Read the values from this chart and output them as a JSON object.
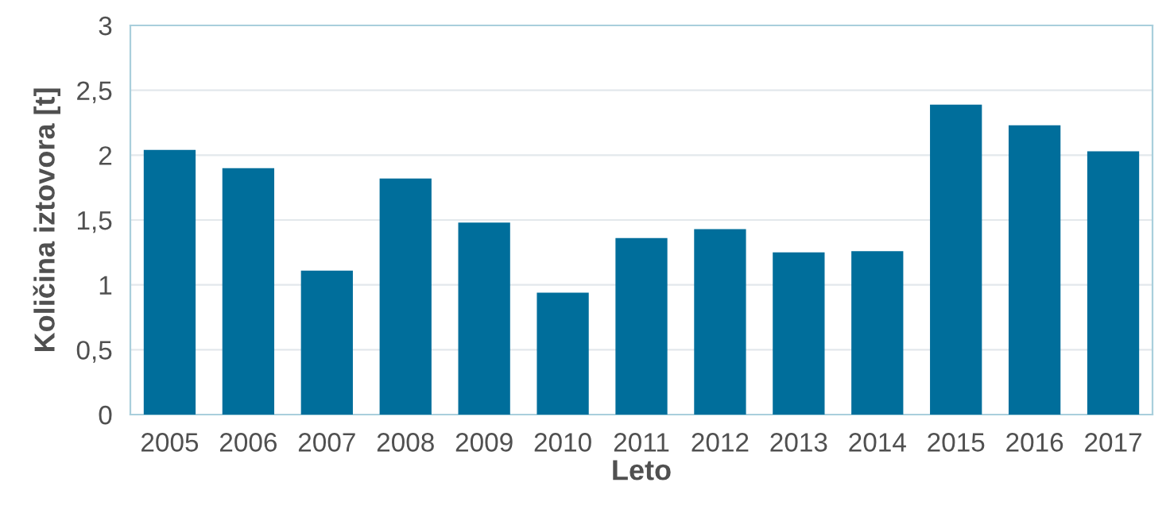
{
  "chart_data": {
    "type": "bar",
    "xlabel": "Leto",
    "ylabel": "Količina iztovora [t]",
    "categories": [
      "2005",
      "2006",
      "2007",
      "2008",
      "2009",
      "2010",
      "2011",
      "2012",
      "2013",
      "2014",
      "2015",
      "2016",
      "2017"
    ],
    "values": [
      2.04,
      1.9,
      1.11,
      1.82,
      1.48,
      0.94,
      1.36,
      1.43,
      1.25,
      1.26,
      2.39,
      2.23,
      2.03
    ],
    "color": "#006e9b",
    "ylim": [
      0,
      3
    ],
    "yticks": [
      0,
      {
        "value": 0.5,
        "label": "0,5"
      },
      1,
      {
        "value": 1.5,
        "label": "1,5"
      },
      2,
      {
        "value": 2.5,
        "label": "2,5"
      },
      3
    ],
    "grid": "y"
  }
}
